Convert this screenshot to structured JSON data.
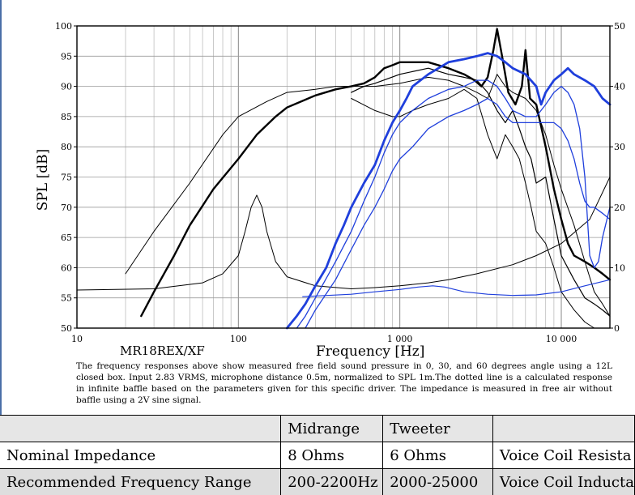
{
  "chart_data": {
    "type": "line",
    "title": "",
    "model": "MR18REX/XF",
    "xlabel": "Frequency [Hz]",
    "ylabel": "SPL [dB]",
    "xscale": "log",
    "xlim": [
      10,
      20000
    ],
    "ylim": [
      50,
      100
    ],
    "y2lim": [
      0,
      50
    ],
    "x_ticks": [
      10,
      100,
      1000,
      10000
    ],
    "x_tick_labels": [
      "10",
      "100",
      "1 000",
      "10 000"
    ],
    "y_ticks": [
      50,
      55,
      60,
      65,
      70,
      75,
      80,
      85,
      90,
      95,
      100
    ],
    "y_tick_labels": [
      "50",
      "55",
      "60",
      "65",
      "70",
      "75",
      "80",
      "85",
      "90",
      "95",
      "100"
    ],
    "y2_ticks": [
      0,
      10,
      20,
      30,
      40,
      50
    ],
    "y2_tick_labels": [
      "0",
      "10",
      "20",
      "30",
      "40",
      "50"
    ],
    "grid": true,
    "series": [
      {
        "color": "#000000",
        "width": 2.4,
        "axis": "left",
        "points": [
          [
            25,
            52
          ],
          [
            30,
            56
          ],
          [
            40,
            62
          ],
          [
            50,
            67
          ],
          [
            70,
            73
          ],
          [
            100,
            78
          ],
          [
            130,
            82
          ],
          [
            170,
            85
          ],
          [
            200,
            86.5
          ],
          [
            300,
            88.5
          ],
          [
            400,
            89.5
          ],
          [
            500,
            90
          ],
          [
            600,
            90.5
          ],
          [
            700,
            91.5
          ],
          [
            800,
            93
          ],
          [
            900,
            93.5
          ],
          [
            1000,
            94
          ],
          [
            1500,
            94
          ],
          [
            2000,
            93
          ],
          [
            2500,
            92
          ],
          [
            2900,
            91
          ],
          [
            3200,
            90
          ],
          [
            3500,
            91.5
          ],
          [
            3800,
            96
          ],
          [
            4000,
            99.5
          ],
          [
            4300,
            95
          ],
          [
            4700,
            89
          ],
          [
            5200,
            87
          ],
          [
            5700,
            90
          ],
          [
            6000,
            96
          ],
          [
            6400,
            88
          ],
          [
            7000,
            87
          ],
          [
            8000,
            80
          ],
          [
            9000,
            73
          ],
          [
            10000,
            68
          ],
          [
            11000,
            64
          ],
          [
            12000,
            62
          ],
          [
            14000,
            61
          ],
          [
            16000,
            60
          ],
          [
            18000,
            59
          ],
          [
            20000,
            58
          ]
        ]
      },
      {
        "color": "#000000",
        "width": 1.0,
        "axis": "left",
        "points": [
          [
            20,
            59
          ],
          [
            30,
            66
          ],
          [
            50,
            74
          ],
          [
            80,
            82
          ],
          [
            100,
            85
          ],
          [
            150,
            87.5
          ],
          [
            200,
            89
          ],
          [
            300,
            89.5
          ],
          [
            400,
            90
          ],
          [
            700,
            90
          ],
          [
            1000,
            90.5
          ],
          [
            1500,
            91.5
          ],
          [
            2000,
            91
          ],
          [
            2500,
            90
          ],
          [
            3000,
            89
          ],
          [
            3500,
            88
          ],
          [
            4000,
            92
          ],
          [
            4500,
            90
          ],
          [
            5000,
            89
          ],
          [
            6000,
            88
          ],
          [
            7000,
            86
          ],
          [
            8000,
            82
          ],
          [
            9000,
            77
          ],
          [
            10000,
            73
          ],
          [
            12000,
            67
          ],
          [
            14000,
            61
          ],
          [
            16000,
            56
          ],
          [
            18000,
            54
          ],
          [
            20000,
            52
          ]
        ]
      },
      {
        "color": "#000000",
        "width": 1.2,
        "axis": "left",
        "points": [
          [
            500,
            89
          ],
          [
            600,
            90
          ],
          [
            700,
            90.5
          ],
          [
            1000,
            92
          ],
          [
            1500,
            93
          ],
          [
            2000,
            92
          ],
          [
            2500,
            91.5
          ],
          [
            3000,
            91
          ],
          [
            3500,
            89
          ],
          [
            4000,
            86
          ],
          [
            4500,
            84
          ],
          [
            5000,
            86
          ],
          [
            5500,
            83
          ],
          [
            6000,
            80
          ],
          [
            6500,
            78
          ],
          [
            7000,
            74
          ],
          [
            8000,
            75
          ],
          [
            9000,
            68
          ],
          [
            10000,
            62
          ],
          [
            12000,
            58
          ],
          [
            14000,
            55
          ],
          [
            16000,
            54
          ],
          [
            18000,
            53
          ],
          [
            20000,
            52
          ]
        ]
      },
      {
        "color": "#000000",
        "width": 1.0,
        "axis": "left",
        "points": [
          [
            500,
            88
          ],
          [
            700,
            86
          ],
          [
            900,
            85
          ],
          [
            1000,
            85
          ],
          [
            1200,
            86
          ],
          [
            1500,
            87
          ],
          [
            2000,
            88
          ],
          [
            2500,
            89.5
          ],
          [
            3000,
            88
          ],
          [
            3500,
            82
          ],
          [
            4000,
            78
          ],
          [
            4500,
            82
          ],
          [
            5000,
            80
          ],
          [
            5500,
            78
          ],
          [
            6000,
            74
          ],
          [
            6500,
            70
          ],
          [
            7000,
            66
          ],
          [
            8000,
            64
          ],
          [
            9000,
            60
          ],
          [
            10000,
            56
          ],
          [
            12000,
            53
          ],
          [
            14000,
            51
          ],
          [
            16000,
            50
          ],
          [
            20000,
            50
          ]
        ]
      },
      {
        "color": "#000000",
        "width": 1.0,
        "axis": "left",
        "points": [
          [
            10,
            56.3
          ],
          [
            30,
            56.5
          ],
          [
            60,
            57.5
          ],
          [
            80,
            59
          ],
          [
            100,
            62
          ],
          [
            110,
            66
          ],
          [
            120,
            70
          ],
          [
            130,
            72
          ],
          [
            140,
            70
          ],
          [
            150,
            66
          ],
          [
            170,
            61
          ],
          [
            200,
            58.5
          ],
          [
            300,
            57
          ],
          [
            500,
            56.5
          ],
          [
            700,
            56.7
          ],
          [
            1000,
            57
          ],
          [
            1500,
            57.5
          ],
          [
            2000,
            58
          ],
          [
            3000,
            59
          ],
          [
            5000,
            60.5
          ],
          [
            7000,
            62
          ],
          [
            10000,
            64
          ],
          [
            15000,
            68
          ],
          [
            20000,
            75
          ]
        ]
      },
      {
        "color": "#1f3fdc",
        "width": 2.8,
        "axis": "left",
        "points": [
          [
            200,
            50
          ],
          [
            230,
            52
          ],
          [
            260,
            54
          ],
          [
            300,
            57
          ],
          [
            350,
            60
          ],
          [
            400,
            64
          ],
          [
            450,
            67
          ],
          [
            500,
            70
          ],
          [
            600,
            74
          ],
          [
            700,
            77
          ],
          [
            800,
            81
          ],
          [
            900,
            84
          ],
          [
            1000,
            86
          ],
          [
            1100,
            88
          ],
          [
            1200,
            90
          ],
          [
            1500,
            92
          ],
          [
            2000,
            94
          ],
          [
            2500,
            94.5
          ],
          [
            3000,
            95
          ],
          [
            3500,
            95.5
          ],
          [
            4000,
            95
          ],
          [
            4500,
            94
          ],
          [
            5000,
            93
          ],
          [
            6000,
            92
          ],
          [
            7000,
            90
          ],
          [
            7500,
            87
          ],
          [
            8000,
            89
          ],
          [
            9000,
            91
          ],
          [
            10000,
            92
          ],
          [
            11000,
            93
          ],
          [
            12000,
            92
          ],
          [
            14000,
            91
          ],
          [
            16000,
            90
          ],
          [
            18000,
            88
          ],
          [
            20000,
            87
          ]
        ]
      },
      {
        "color": "#1f3fdc",
        "width": 1.3,
        "axis": "left",
        "points": [
          [
            230,
            50
          ],
          [
            260,
            52
          ],
          [
            300,
            55
          ],
          [
            400,
            61
          ],
          [
            500,
            66
          ],
          [
            600,
            71
          ],
          [
            700,
            75
          ],
          [
            800,
            79
          ],
          [
            900,
            82
          ],
          [
            1000,
            84
          ],
          [
            1200,
            86
          ],
          [
            1500,
            88
          ],
          [
            2000,
            89.5
          ],
          [
            2500,
            90
          ],
          [
            3000,
            91
          ],
          [
            3500,
            91
          ],
          [
            4000,
            90
          ],
          [
            4500,
            88
          ],
          [
            5000,
            86
          ],
          [
            6000,
            85
          ],
          [
            7000,
            85
          ],
          [
            8000,
            87
          ],
          [
            9000,
            89
          ],
          [
            10000,
            90
          ],
          [
            11000,
            89
          ],
          [
            12000,
            87
          ],
          [
            13000,
            83
          ],
          [
            14000,
            75
          ],
          [
            15000,
            62
          ],
          [
            16000,
            60
          ],
          [
            17000,
            61
          ],
          [
            18000,
            65
          ],
          [
            20000,
            70
          ]
        ]
      },
      {
        "color": "#1f3fdc",
        "width": 1.3,
        "axis": "left",
        "points": [
          [
            260,
            50
          ],
          [
            300,
            53
          ],
          [
            400,
            58
          ],
          [
            500,
            63
          ],
          [
            600,
            67
          ],
          [
            700,
            70
          ],
          [
            800,
            73
          ],
          [
            900,
            76
          ],
          [
            1000,
            78
          ],
          [
            1200,
            80
          ],
          [
            1500,
            83
          ],
          [
            2000,
            85
          ],
          [
            2500,
            86
          ],
          [
            3000,
            87
          ],
          [
            3500,
            88
          ],
          [
            4000,
            87
          ],
          [
            4500,
            85
          ],
          [
            5000,
            84
          ],
          [
            6000,
            84
          ],
          [
            7000,
            84
          ],
          [
            8000,
            84
          ],
          [
            9000,
            84
          ],
          [
            10000,
            83
          ],
          [
            11000,
            81
          ],
          [
            12000,
            78
          ],
          [
            13000,
            74
          ],
          [
            14000,
            71
          ],
          [
            15000,
            70
          ],
          [
            16000,
            70
          ],
          [
            18000,
            69
          ],
          [
            20000,
            68
          ]
        ]
      },
      {
        "color": "#1f3fdc",
        "width": 1.2,
        "axis": "left",
        "points": [
          [
            250,
            55.2
          ],
          [
            500,
            55.6
          ],
          [
            700,
            56
          ],
          [
            1000,
            56.4
          ],
          [
            1300,
            56.8
          ],
          [
            1600,
            57
          ],
          [
            1900,
            56.8
          ],
          [
            2500,
            56
          ],
          [
            3500,
            55.6
          ],
          [
            5000,
            55.4
          ],
          [
            7000,
            55.5
          ],
          [
            10000,
            56
          ],
          [
            14000,
            57
          ],
          [
            20000,
            58
          ]
        ]
      }
    ]
  },
  "caption": "The frequency responses above show measured free field sound pressure in 0, 30, and 60 degrees angle using a 12L closed box. Input 2.83 VRMS, microphone distance 0.5m, normalized to SPL 1m.The dotted line is a calculated response in infinite baffle based on the parameters given for this specific driver. The impedance is measured in free air without baffle using a 2V sine signal.",
  "table": {
    "headers": [
      "",
      "Midrange",
      "Tweeter",
      ""
    ],
    "rows": [
      [
        "Nominal Impedance",
        "8 Ohms",
        "6 Ohms",
        "Voice Coil Resista"
      ],
      [
        "Recommended Frequency Range",
        "200-2200Hz",
        "2000-25000",
        "Voice Coil Inducta"
      ]
    ]
  }
}
